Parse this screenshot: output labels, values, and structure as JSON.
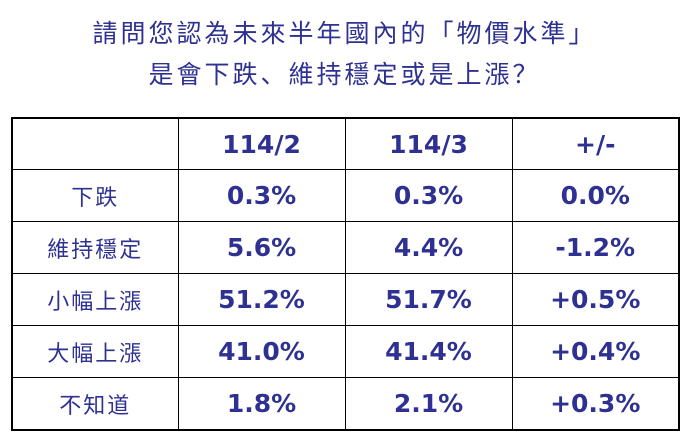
{
  "title": {
    "line1": "請問您認為未來半年國內的「物價水準」",
    "line2": "是會下跌、維持穩定或是上漲？"
  },
  "table": {
    "headers": [
      "",
      "114/2",
      "114/3",
      "+/-"
    ],
    "rows": [
      {
        "label": "下跌",
        "values": [
          "0.3%",
          "0.3%",
          "0.0%"
        ]
      },
      {
        "label": "維持穩定",
        "values": [
          "5.6%",
          "4.4%",
          "-1.2%"
        ]
      },
      {
        "label": "小幅上漲",
        "values": [
          "51.2%",
          "51.7%",
          "+0.5%"
        ]
      },
      {
        "label": "大幅上漲",
        "values": [
          "41.0%",
          "41.4%",
          "+0.4%"
        ]
      },
      {
        "label": "不知道",
        "values": [
          "1.8%",
          "2.1%",
          "+0.3%"
        ]
      }
    ]
  },
  "colors": {
    "text": "#2e3192",
    "border": "#000000",
    "background": "#ffffff"
  }
}
